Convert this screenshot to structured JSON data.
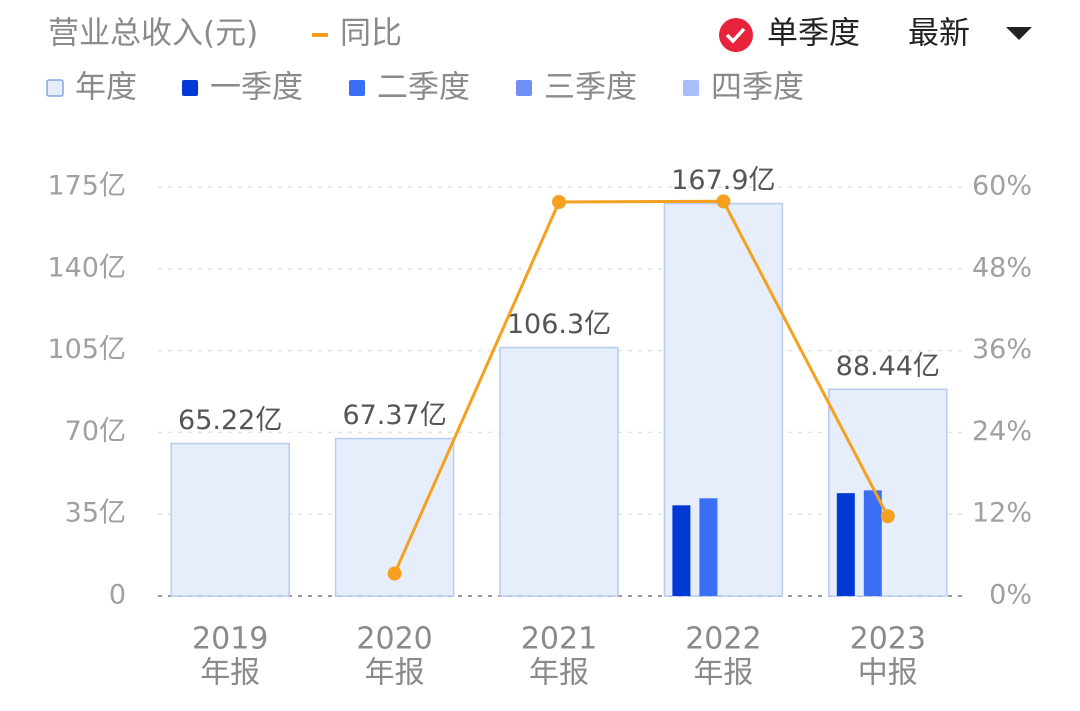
{
  "chart_data": {
    "type": "bar",
    "title": "营业总收入(元)",
    "categories": [
      [
        "2019",
        "年报"
      ],
      [
        "2020",
        "年报"
      ],
      [
        "2021",
        "年报"
      ],
      [
        "2022",
        "年报"
      ],
      [
        "2023",
        "中报"
      ]
    ],
    "series": [
      {
        "name": "年度",
        "color": "#e6eefc",
        "values": [
          65.22,
          67.37,
          106.3,
          167.9,
          88.44
        ],
        "value_labels": [
          "65.22亿",
          "67.37亿",
          "106.3亿",
          "167.9亿",
          "88.44亿"
        ]
      },
      {
        "name": "一季度",
        "color": "#0039d6",
        "values": [
          null,
          null,
          null,
          38.8,
          44
        ]
      },
      {
        "name": "二季度",
        "color": "#3a6ef5",
        "values": [
          null,
          null,
          null,
          41.8,
          45.2
        ]
      },
      {
        "name": "三季度",
        "color": "#6e90f7",
        "values": [
          null,
          null,
          null,
          null,
          null
        ]
      },
      {
        "name": "四季度",
        "color": "#a8bdfa",
        "values": [
          null,
          null,
          null,
          null,
          null
        ]
      },
      {
        "name": "同比",
        "type": "line",
        "axis": "y2",
        "color": "#f5a020",
        "values": [
          null,
          3.3,
          57.8,
          57.9,
          11.7
        ]
      }
    ],
    "ylim": [
      0,
      175
    ],
    "yticks": [
      0,
      {
        "value": 35,
        "label": "35亿"
      },
      {
        "value": 70,
        "label": "70亿"
      },
      {
        "value": 105,
        "label": "105亿"
      },
      {
        "value": 140,
        "label": "140亿"
      },
      {
        "value": 175,
        "label": "175亿"
      }
    ],
    "y2lim": [
      0,
      60
    ],
    "y2ticks": [
      {
        "value": 0,
        "label": "0%"
      },
      {
        "value": 12,
        "label": "12%"
      },
      {
        "value": 24,
        "label": "24%"
      },
      {
        "value": 36,
        "label": "36%"
      },
      {
        "value": 48,
        "label": "48%"
      },
      {
        "value": 60,
        "label": "60%"
      }
    ],
    "grid": true
  },
  "controls": {
    "quarterly_toggle": "单季度",
    "period": "最新"
  }
}
